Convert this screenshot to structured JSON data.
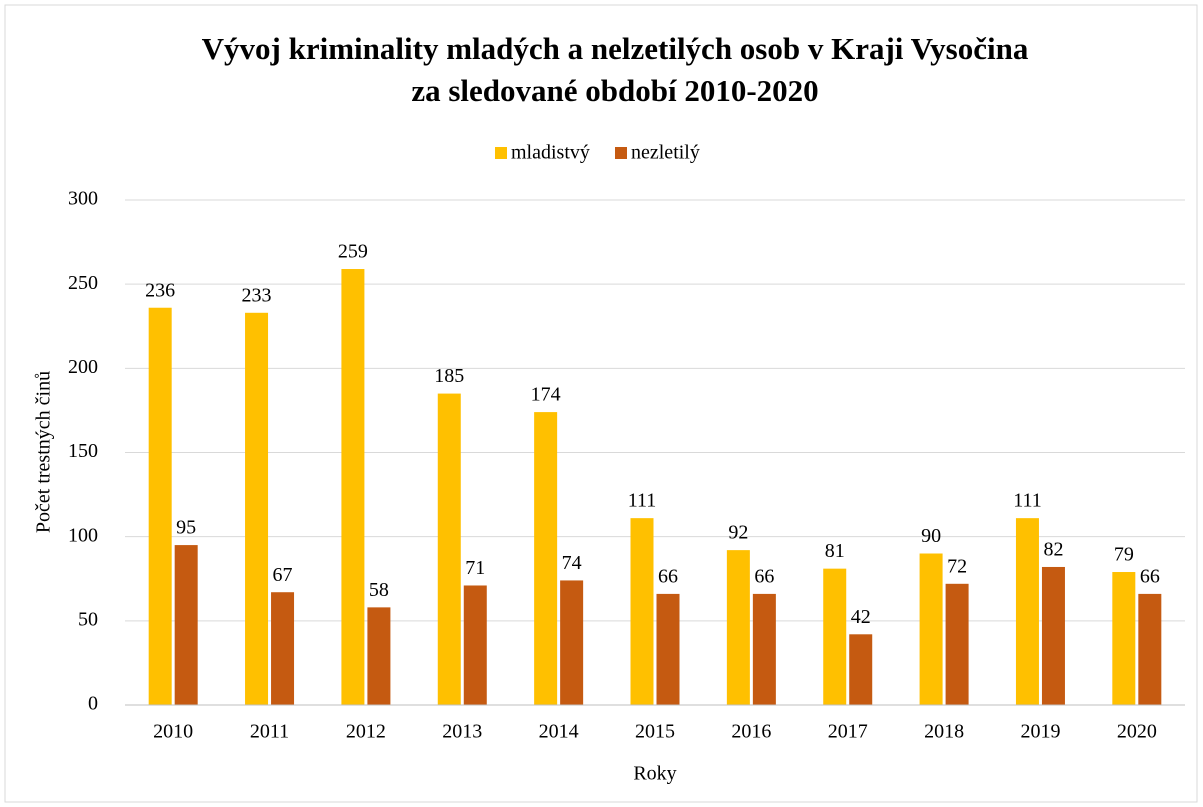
{
  "chart_data": {
    "type": "bar",
    "title": [
      "Vývoj kriminality mladých a nelzetilých osob v Kraji Vysočina",
      "za sledované období 2010-2020"
    ],
    "x_label": "Roky",
    "y_label": "Počet trestných činů",
    "categories": [
      "2010",
      "2011",
      "2012",
      "2013",
      "2014",
      "2015",
      "2016",
      "2017",
      "2018",
      "2019",
      "2020"
    ],
    "series": [
      {
        "name": "mladistvý",
        "color": "#ffc000",
        "values": [
          236,
          233,
          259,
          185,
          174,
          111,
          92,
          81,
          90,
          111,
          79
        ]
      },
      {
        "name": "nezletilý",
        "color": "#c55a11",
        "values": [
          95,
          67,
          58,
          71,
          74,
          66,
          66,
          42,
          72,
          82,
          66
        ]
      }
    ],
    "ylim": [
      0,
      300
    ],
    "yticks": [
      0,
      50,
      100,
      150,
      200,
      250,
      300
    ],
    "grid": true,
    "legend": "top"
  }
}
